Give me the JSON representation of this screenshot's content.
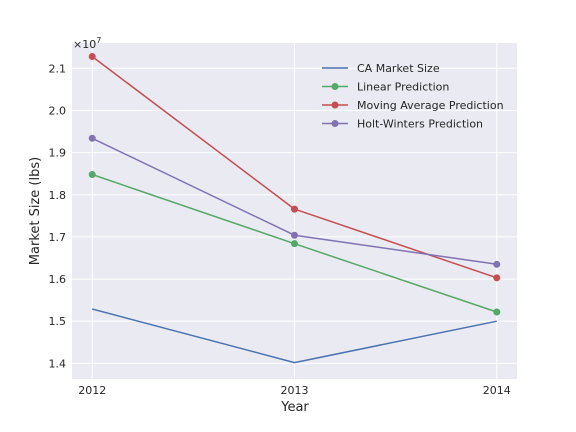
{
  "chart_data": {
    "type": "line",
    "title": "",
    "xlabel": "Year",
    "ylabel": "Market Size (lbs)",
    "y_scale_label": "×10",
    "y_scale_exponent": "7",
    "categories": [
      "2012",
      "2013",
      "2014"
    ],
    "x": [
      2012,
      2013,
      2014
    ],
    "xlim": [
      2011.9,
      2014.1
    ],
    "ylim": [
      13630000,
      21600000
    ],
    "yticks": [
      14000000,
      15000000,
      16000000,
      17000000,
      18000000,
      19000000,
      20000000,
      21000000
    ],
    "ytick_labels": [
      "1.4",
      "1.5",
      "1.6",
      "1.7",
      "1.8",
      "1.9",
      "2.0",
      "2.1"
    ],
    "grid": true,
    "legend_position": "top-right",
    "series": [
      {
        "name": "CA Market Size",
        "values": [
          15290000,
          14020000,
          15000000
        ],
        "color": "#4c72b0",
        "markers": false
      },
      {
        "name": "Linear Prediction",
        "values": [
          18480000,
          16840000,
          15220000
        ],
        "color": "#55a868",
        "markers": true
      },
      {
        "name": "Moving Average Prediction",
        "values": [
          21280000,
          17660000,
          16030000
        ],
        "color": "#c44e52",
        "markers": true
      },
      {
        "name": "Holt-Winters Prediction",
        "values": [
          19340000,
          17040000,
          16350000
        ],
        "color": "#8172b2",
        "markers": true
      }
    ]
  }
}
